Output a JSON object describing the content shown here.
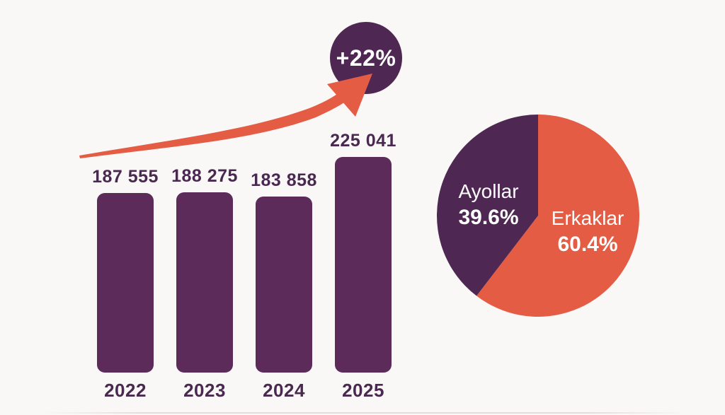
{
  "colors": {
    "background": "#faf8f6",
    "bar_purple": "#5c2b59",
    "dark_purple": "#4e2752",
    "orange": "#e55c45",
    "label_text": "#4a2950",
    "white_text": "#ffffff"
  },
  "chart_data": [
    {
      "type": "bar",
      "title": "",
      "xlabel": "",
      "ylabel": "",
      "categories": [
        "2022",
        "2023",
        "2024",
        "2025"
      ],
      "values": [
        187555,
        188275,
        183858,
        225041
      ],
      "value_labels": [
        "187 555",
        "188 275",
        "183 858",
        "225 041"
      ],
      "bar_color": "#5c2b59",
      "grid": "off",
      "axes": "hidden",
      "annotation": {
        "label": "+22%",
        "shape": "circle-badge",
        "badge_color": "#4e2752",
        "arrow_color": "#e55c45",
        "meaning": "growth from 2024 to 2025"
      }
    },
    {
      "type": "pie",
      "title": "",
      "legend": "none",
      "start_angle_deg_from_north": 0,
      "direction": "clockwise",
      "slices": [
        {
          "label": "Erkaklar",
          "value": 60.4,
          "display": "60.4%",
          "color": "#e55c45",
          "text_color": "#ffffff"
        },
        {
          "label": "Ayollar",
          "value": 39.6,
          "display": "39.6%",
          "color": "#4e2752",
          "text_color": "#ffffff"
        }
      ]
    }
  ]
}
